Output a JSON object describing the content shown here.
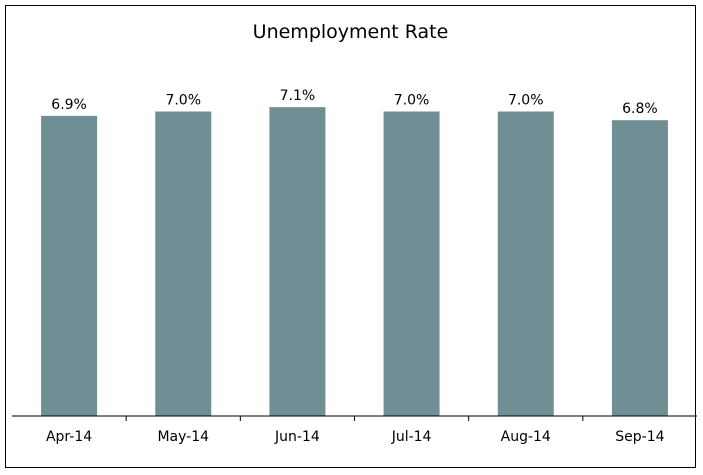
{
  "chart_data": {
    "type": "bar",
    "title": "Unemployment Rate",
    "categories": [
      "Apr-14",
      "May-14",
      "Jun-14",
      "Jul-14",
      "Aug-14",
      "Sep-14"
    ],
    "values": [
      6.9,
      7.0,
      7.1,
      7.0,
      7.0,
      6.8
    ],
    "data_labels": [
      "6.9%",
      "7.0%",
      "7.1%",
      "7.0%",
      "7.0%",
      "6.8%"
    ],
    "xlabel": "",
    "ylabel": "",
    "ylim": [
      0,
      8.0
    ],
    "grid": false,
    "legend": "none",
    "bar_color": "#6f8f94"
  }
}
